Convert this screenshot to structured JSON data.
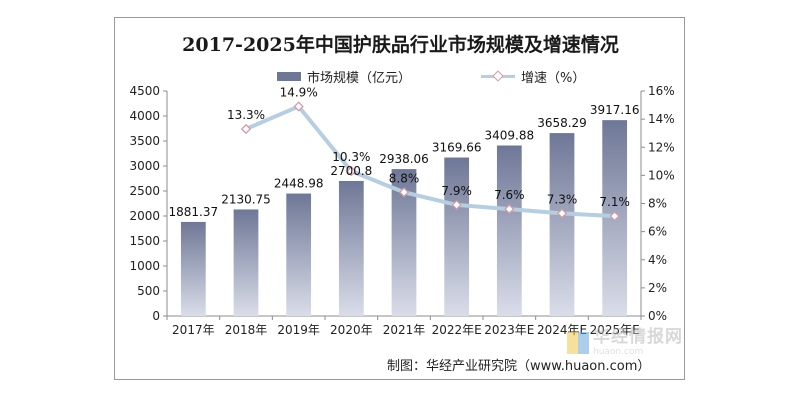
{
  "chart_data": {
    "type": "bar",
    "title": "2017-2025年中国护肤品行业市场规模及增速情况",
    "categories": [
      "2017年",
      "2018年",
      "2019年",
      "2020年",
      "2021年",
      "2022年E",
      "2023年E",
      "2024年E",
      "2025年E"
    ],
    "series": [
      {
        "name": "市场规模（亿元）",
        "type": "bar",
        "axis": "left",
        "values": [
          1881.37,
          2130.75,
          2448.98,
          2700.8,
          2938.06,
          3169.66,
          3409.88,
          3658.29,
          3917.16
        ],
        "labels": [
          "1881.37",
          "2130.75",
          "2448.98",
          "2700.8",
          "2938.06",
          "3169.66",
          "3409.88",
          "3658.29",
          "3917.16"
        ],
        "color": "#6e7796"
      },
      {
        "name": "增速（%）",
        "type": "line",
        "axis": "right",
        "values": [
          null,
          13.3,
          14.9,
          10.3,
          8.8,
          7.9,
          7.6,
          7.3,
          7.1
        ],
        "labels": [
          "",
          "13.3%",
          "14.9%",
          "10.3%",
          "8.8%",
          "7.9%",
          "7.6%",
          "7.3%",
          "7.1%"
        ],
        "color": "#b7cde0",
        "marker_color": "#d29aa7"
      }
    ],
    "y_left": {
      "min": 0,
      "max": 4500,
      "ticks": [
        "0",
        "500",
        "1000",
        "1500",
        "2000",
        "2500",
        "3000",
        "3500",
        "4000",
        "4500"
      ]
    },
    "y_right": {
      "min": 0,
      "max": 16,
      "ticks": [
        "0%",
        "2%",
        "4%",
        "6%",
        "8%",
        "10%",
        "12%",
        "14%",
        "16%"
      ]
    },
    "grid": false,
    "legend_position": "top"
  },
  "legend": {
    "bar_label": "市场规模（亿元）",
    "line_label": "增速（%）"
  },
  "source": "制图：华经产业研究院（www.huaon.com）",
  "watermark": {
    "cn": "华经情报网",
    "en": "huaon.com"
  },
  "colors": {
    "bar": "#6e7796",
    "line": "#b7cde0",
    "marker": "#d29aa7",
    "frame": "#9a9a9a"
  }
}
